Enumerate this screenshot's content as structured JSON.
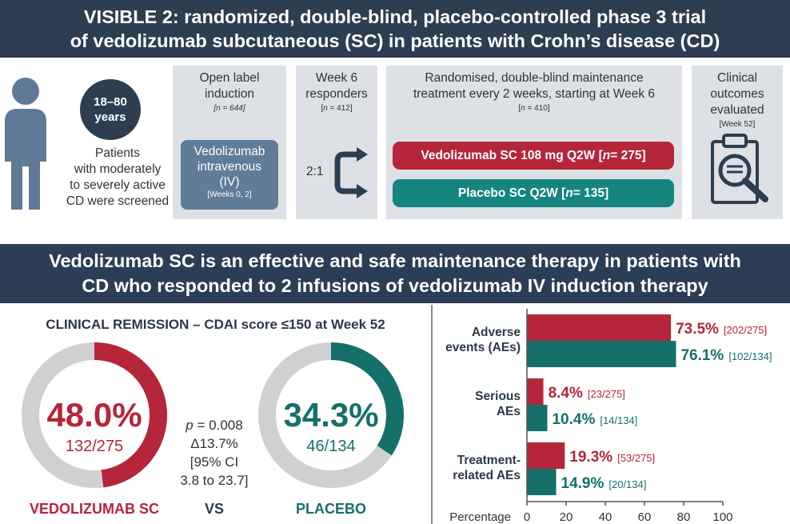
{
  "header": {
    "line1": "VISIBLE 2: randomized, double-blind, placebo-controlled phase 3 trial",
    "line2": "of vedolizumab subcutaneous (SC) in patients with Crohn’s disease (CD)"
  },
  "design": {
    "age_line1": "18–80",
    "age_line2": "years",
    "patients_lines": [
      "Patients",
      "with moderately",
      "to severely active",
      "CD were screened"
    ],
    "open_label": {
      "line1": "Open label",
      "line2": "induction",
      "n": "[n = 644]"
    },
    "iv_box": {
      "line1": "Vedolizumab",
      "line2": "intravenous",
      "line3": "(IV)",
      "weeks": "[Weeks 0, 2]"
    },
    "responders": {
      "line1": "Week 6",
      "line2": "responders",
      "n": "[n = 412]",
      "ratio": "2:1"
    },
    "maintenance": {
      "line1": "Randomised, double-blind maintenance",
      "line2": "treatment every 2 weeks, starting at Week 6",
      "n": "[n = 410]"
    },
    "arm_vedo": "Vedolizumab SC 108 mg Q2W [n = 275]",
    "arm_placebo": "Placebo SC Q2W [n = 135]",
    "outcomes": {
      "line1": "Clinical",
      "line2": "outcomes",
      "line3": "evaluated",
      "week": "[Week 52]"
    }
  },
  "conclusion": {
    "line1": "Vedolizumab SC is an effective and safe maintenance therapy in patients with",
    "line2": "CD who responded to 2 infusions of vedolizumab IV induction therapy"
  },
  "colors": {
    "vedo": "#b5263a",
    "placebo": "#15706a",
    "track": "#d0d0d0",
    "dark": "#2c3e50"
  },
  "chart_data": [
    {
      "type": "pie",
      "title": "CLINICAL REMISSION – CDAI score ≤150 at Week 52",
      "donuts": [
        {
          "value": 48.0,
          "label": "48.0%",
          "fraction": "132/275",
          "name": "VEDOLIZUMAB SC"
        },
        {
          "value": 34.3,
          "label": "34.3%",
          "fraction": "46/134",
          "name": "PLACEBO"
        }
      ],
      "vs": "VS",
      "stats": [
        "= 0.008",
        "Δ13.7%",
        "[95% CI",
        "3.8 to 23.7]"
      ],
      "p_label": "p"
    },
    {
      "type": "bar",
      "orientation": "horizontal",
      "categories": [
        [
          "Adverse",
          "events (AEs)"
        ],
        [
          "Serious",
          "AEs"
        ],
        [
          "Treatment-",
          "related AEs"
        ]
      ],
      "series": [
        {
          "values": [
            73.5,
            8.4,
            19.3
          ],
          "labels": [
            "73.5%",
            "8.4%",
            "19.3%"
          ],
          "counts": [
            "[202/275]",
            "[23/275]",
            "[53/275]"
          ]
        },
        {
          "values": [
            76.1,
            10.4,
            14.9
          ],
          "labels": [
            "76.1%",
            "10.4%",
            "14.9%"
          ],
          "counts": [
            "[102/134]",
            "[14/134]",
            "[20/134]"
          ]
        }
      ],
      "xlabel": "Percentage",
      "xlim": [
        0,
        100
      ],
      "xticks": [
        "0",
        "20",
        "40",
        "60",
        "80",
        "100"
      ]
    }
  ]
}
